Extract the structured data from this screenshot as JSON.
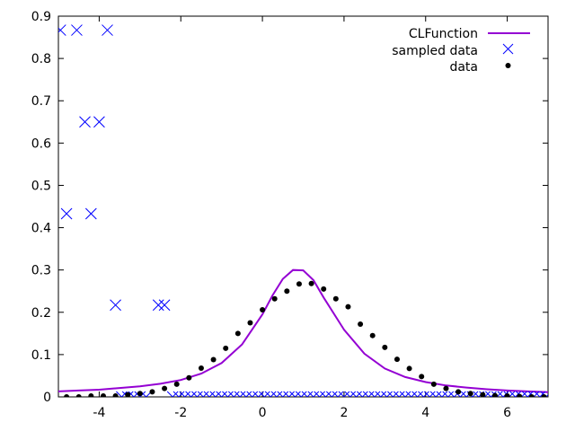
{
  "chart_data": {
    "type": "scatter",
    "title": "",
    "xlabel": "",
    "ylabel": "",
    "xlim": [
      -5,
      7
    ],
    "ylim": [
      0,
      0.9
    ],
    "xticks": [
      -4,
      -2,
      0,
      2,
      4,
      6
    ],
    "xtick_labels": [
      "-4",
      "-2",
      "0",
      "2",
      "4",
      "6"
    ],
    "yticks": [
      0,
      0.1,
      0.2,
      0.3,
      0.4,
      0.5,
      0.6,
      0.7,
      0.8,
      0.9
    ],
    "ytick_labels": [
      "0",
      "0.1",
      "0.2",
      "0.3",
      "0.4",
      "0.5",
      "0.6",
      "0.7",
      "0.8",
      "0.9"
    ],
    "grid": false,
    "legend_position": "top-right",
    "series": [
      {
        "name": "CLFunction",
        "kind": "line",
        "color": "#9400d3",
        "x": [
          -5,
          -4.5,
          -4,
          -3.5,
          -3,
          -2.5,
          -2,
          -1.5,
          -1,
          -0.5,
          0,
          0.25,
          0.5,
          0.75,
          1,
          1.25,
          1.5,
          2,
          2.5,
          3,
          3.5,
          4,
          4.5,
          5,
          5.5,
          6,
          6.5,
          7
        ],
        "y": [
          0.013,
          0.015,
          0.017,
          0.021,
          0.025,
          0.031,
          0.04,
          0.055,
          0.08,
          0.124,
          0.195,
          0.24,
          0.279,
          0.3,
          0.299,
          0.276,
          0.235,
          0.159,
          0.102,
          0.067,
          0.047,
          0.035,
          0.027,
          0.022,
          0.018,
          0.015,
          0.013,
          0.011
        ]
      },
      {
        "name": "sampled data",
        "kind": "cross",
        "color": "#0000ff",
        "x": [
          -4.95,
          -4.55,
          -3.8,
          -4.35,
          -4.0,
          -4.8,
          -4.2,
          -3.6,
          -2.55,
          -2.4,
          -3.45,
          -3.3,
          -3.15,
          -3.0,
          -2.85,
          -2.2,
          -2.05,
          -1.9,
          -1.75,
          -1.6,
          -1.45,
          -1.3,
          -1.15,
          -1.0,
          -0.85,
          -0.7,
          -0.55,
          -0.4,
          -0.25,
          -0.1,
          0.05,
          0.2,
          0.35,
          0.5,
          0.65,
          0.8,
          0.95,
          1.1,
          1.25,
          1.4,
          1.55,
          1.7,
          1.85,
          2.0,
          2.15,
          2.3,
          2.45,
          2.6,
          2.75,
          2.9,
          3.05,
          3.2,
          3.35,
          3.5,
          3.65,
          3.8,
          3.95,
          4.1,
          4.25,
          4.4,
          4.55,
          4.7,
          4.85,
          5.0,
          5.15,
          5.3,
          5.45,
          5.6,
          5.75,
          5.9,
          6.05,
          6.2,
          6.35,
          6.5,
          6.65,
          6.8,
          6.95
        ],
        "y": [
          0.867,
          0.867,
          0.867,
          0.65,
          0.65,
          0.433,
          0.433,
          0.217,
          0.217,
          0.217,
          0,
          0,
          0,
          0,
          0,
          0,
          0,
          0,
          0,
          0,
          0,
          0,
          0,
          0,
          0,
          0,
          0,
          0,
          0,
          0,
          0,
          0,
          0,
          0,
          0,
          0,
          0,
          0,
          0,
          0,
          0,
          0,
          0,
          0,
          0,
          0,
          0,
          0,
          0,
          0,
          0,
          0,
          0,
          0,
          0,
          0,
          0,
          0,
          0,
          0,
          0,
          0,
          0,
          0,
          0,
          0,
          0,
          0,
          0,
          0,
          0,
          0,
          0,
          0,
          0,
          0,
          0
        ]
      },
      {
        "name": "data",
        "kind": "dot",
        "color": "#000000",
        "x": [
          -4.8,
          -4.5,
          -4.2,
          -3.9,
          -3.6,
          -3.3,
          -3.0,
          -2.7,
          -2.4,
          -2.1,
          -1.8,
          -1.5,
          -1.2,
          -0.9,
          -0.6,
          -0.3,
          0.0,
          0.3,
          0.6,
          0.9,
          1.2,
          1.5,
          1.8,
          2.1,
          2.4,
          2.7,
          3.0,
          3.3,
          3.6,
          3.9,
          4.2,
          4.5,
          4.8,
          5.1,
          5.4,
          5.7,
          6.0,
          6.3,
          6.6,
          6.9
        ],
        "y": [
          0.0,
          0.0,
          0.002,
          0.002,
          0.002,
          0.005,
          0.008,
          0.012,
          0.02,
          0.03,
          0.045,
          0.068,
          0.088,
          0.115,
          0.15,
          0.175,
          0.206,
          0.232,
          0.25,
          0.267,
          0.268,
          0.255,
          0.232,
          0.213,
          0.172,
          0.145,
          0.117,
          0.089,
          0.067,
          0.048,
          0.03,
          0.02,
          0.012,
          0.008,
          0.005,
          0.003,
          0.002,
          0.001,
          0.0,
          0.0
        ]
      }
    ]
  }
}
